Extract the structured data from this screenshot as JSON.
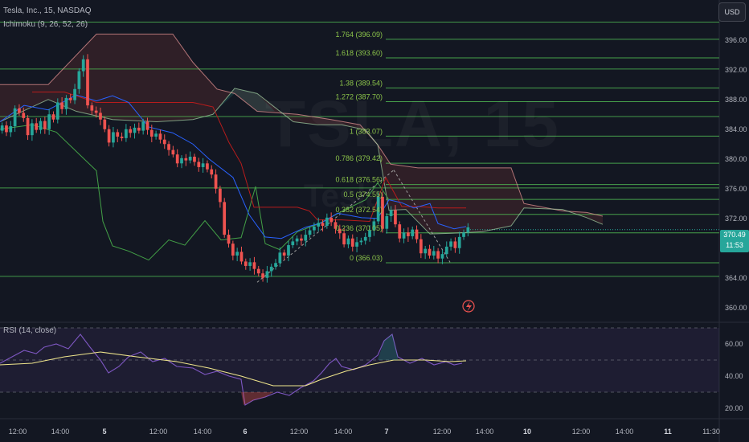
{
  "symbol_legend": "Tesla, Inc., 15, NASDAQ",
  "ichimoku_legend": "Ichimoku (9, 26, 52, 26)",
  "rsi_legend": "RSI (14, close)",
  "currency_button": "USD",
  "watermark": "TSLA, 15",
  "watermark_sub": "Tesla",
  "last_price": "370.49",
  "countdown": "11:53",
  "colors": {
    "background": "#131722",
    "up": "#26a69a",
    "down": "#ef5350",
    "fib_line": "#4caf50",
    "fib_text": "#8bc34a",
    "conversion": "#2962ff",
    "base": "#b71c1c",
    "lagging": "#43a047",
    "span_a": "#a5d6a7",
    "span_b": "#ef9a9a",
    "rsi": "#7e57c2",
    "rsi_ma": "#f0e68c"
  },
  "chart_data": {
    "type": "candlestick",
    "price_axis": {
      "range": [
        359,
        399
      ],
      "ticks": [
        "396.00",
        "392.00",
        "388.00",
        "384.00",
        "380.00",
        "376.00",
        "372.00",
        "368.00",
        "364.00",
        "360.00"
      ]
    },
    "time_axis": {
      "ticks": [
        "12:00",
        "14:00",
        "5",
        "12:00",
        "14:00",
        "6",
        "12:00",
        "14:00",
        "7",
        "12:00",
        "14:00",
        "10",
        "12:00",
        "14:00",
        "11",
        "11:30"
      ]
    },
    "horizontal_levels": [
      398.4,
      392.1,
      385.7,
      376.1,
      364.2
    ],
    "fibonacci": [
      {
        "label": "1.764 (396.09)",
        "value": 396.09
      },
      {
        "label": "1.618 (393.60)",
        "value": 393.6
      },
      {
        "label": "1.38 (389.54)",
        "value": 389.54
      },
      {
        "label": "1.272 (387.70)",
        "value": 387.7
      },
      {
        "label": "1 (383.07)",
        "value": 383.07
      },
      {
        "label": "0.786 (379.42)",
        "value": 379.42
      },
      {
        "label": "0.618 (376.56)",
        "value": 376.56
      },
      {
        "label": "0.5 (374.55)",
        "value": 374.55
      },
      {
        "label": "0.382 (372.54)",
        "value": 372.54
      },
      {
        "label": "0.236 (370.05)",
        "value": 370.05
      },
      {
        "label": "0 (366.03)",
        "value": 366.03
      }
    ],
    "rsi": {
      "range": [
        15,
        70
      ],
      "ticks": [
        "60.00",
        "40.00",
        "20.00"
      ],
      "upper_band": 70,
      "lower_band": 30,
      "mid_band": 50
    }
  }
}
